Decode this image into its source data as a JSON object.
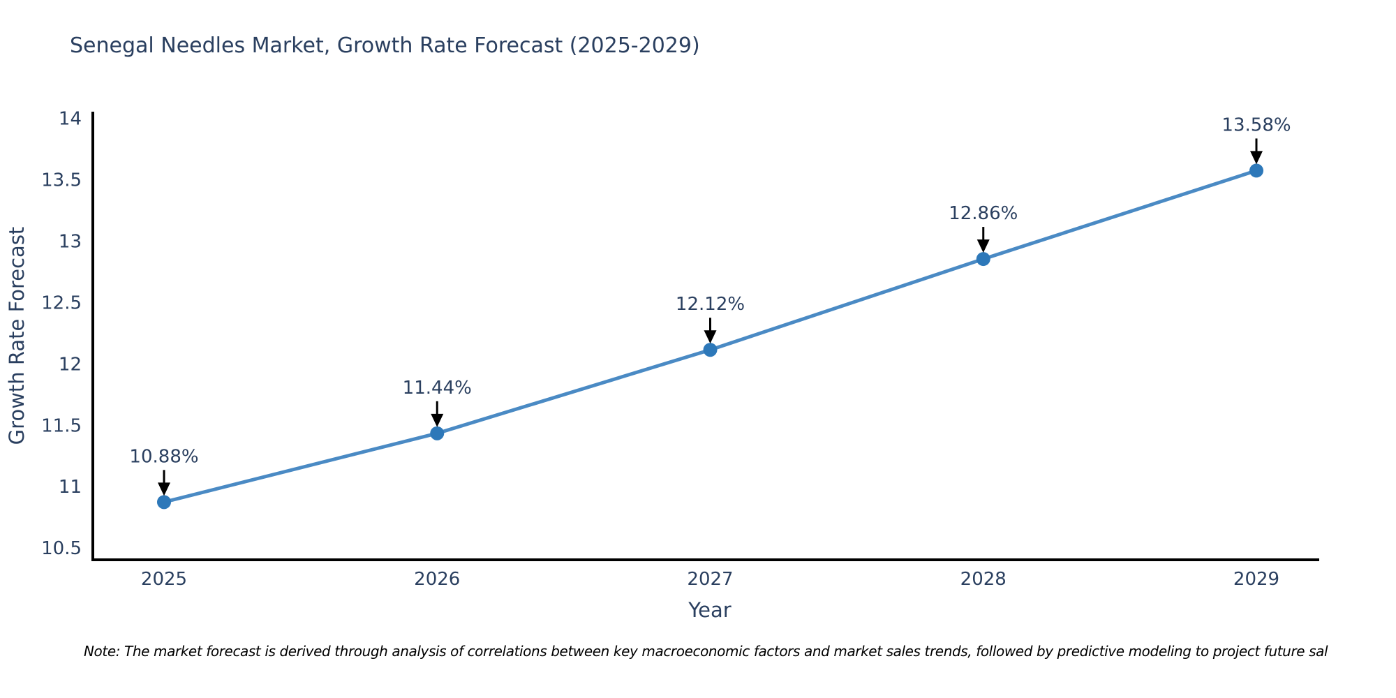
{
  "chart_data": {
    "type": "line",
    "title": "Senegal Needles Market, Growth Rate Forecast (2025-2029)",
    "xlabel": "Year",
    "ylabel": "Growth Rate Forecast",
    "categories": [
      "2025",
      "2026",
      "2027",
      "2028",
      "2029"
    ],
    "series": [
      {
        "name": "Growth Rate Forecast",
        "values": [
          10.88,
          11.44,
          12.12,
          12.86,
          13.58
        ],
        "point_labels": [
          "10.88%",
          "11.44%",
          "12.12%",
          "12.86%",
          "13.58%"
        ]
      }
    ],
    "yticks": [
      10.5,
      11,
      11.5,
      12,
      12.5,
      13,
      13.5,
      14
    ],
    "ylim": [
      10.41,
      14.06
    ],
    "grid": false,
    "legend_position": "none",
    "annotations_style": "label-with-down-arrow-at-each-point",
    "colors": {
      "line": "#4a8ac4",
      "marker": "#2d78b9",
      "axis": "#000000",
      "text": "#2a3f5f",
      "annotation_arrow": "#000000"
    }
  },
  "note": {
    "text": "Note: The market forecast is derived through analysis of correlations between key macroeconomic factors and market sales trends, followed by predictive modeling to project future sal"
  }
}
